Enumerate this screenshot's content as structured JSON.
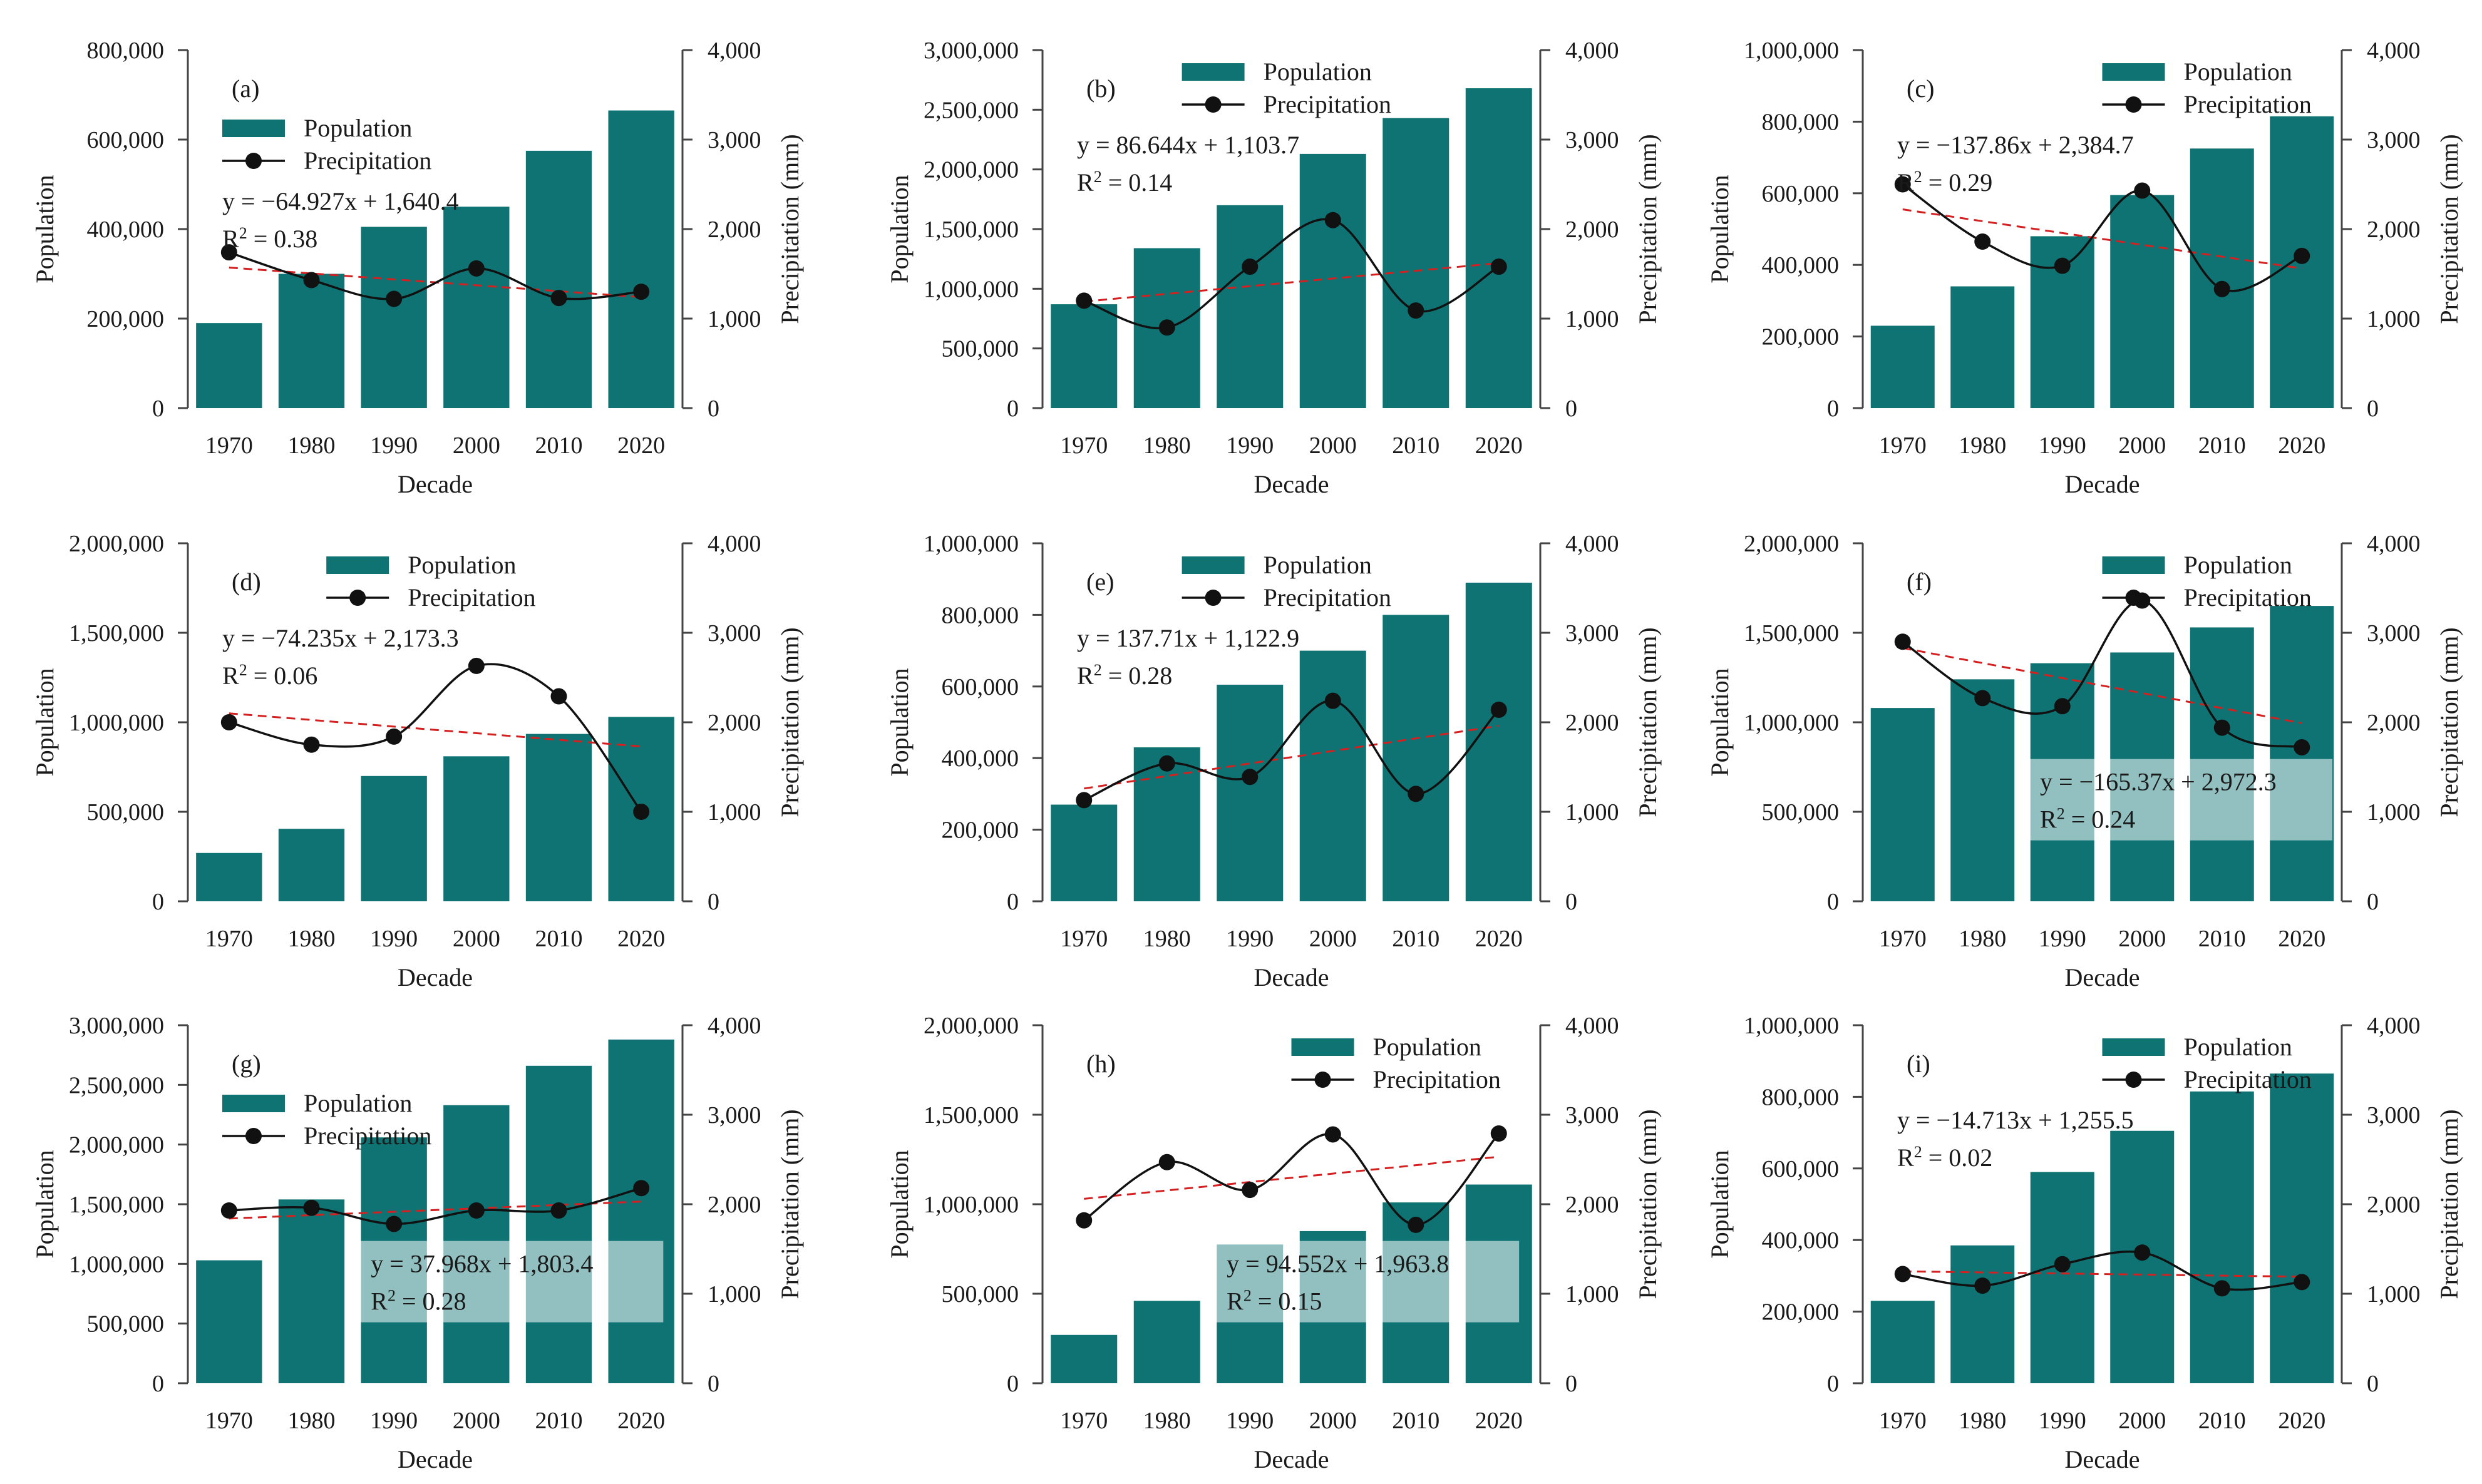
{
  "figure": {
    "colors": {
      "bar": "#0f7373",
      "line": "#111111",
      "trend": "#d42020",
      "eqbox": "#ffffff"
    },
    "legend": {
      "population": "Population",
      "precipitation": "Precipitation"
    }
  },
  "chart_data": [
    {
      "id": "a",
      "type": "bar+line",
      "panel_label": "(a)",
      "categories": [
        "1970",
        "1980",
        "1990",
        "2000",
        "2010",
        "2020"
      ],
      "series": [
        {
          "name": "Population",
          "axis": "left",
          "values": [
            190000,
            300000,
            405000,
            450000,
            575000,
            665000
          ]
        },
        {
          "name": "Precipitation",
          "axis": "right",
          "values": [
            1740,
            1430,
            1220,
            1560,
            1230,
            1300
          ]
        }
      ],
      "trend": {
        "start": 1570,
        "end": 1240
      },
      "y_left": {
        "label": "Population",
        "ticks": [
          "0",
          "200,000",
          "400,000",
          "600,000",
          "800,000"
        ],
        "max": 800000
      },
      "y_right": {
        "label": "Precipitation (mm)",
        "ticks": [
          "0",
          "1,000",
          "2,000",
          "3,000",
          "4,000"
        ],
        "max": 4000
      },
      "xlabel": "Decade",
      "equation": "y = −64.927x + 1,640.4",
      "r2_label": "R",
      "r2_value": " = 0.38",
      "equation_boxed": false,
      "legend_pos": "top-left",
      "eq_pos": "upper-left"
    },
    {
      "id": "b",
      "type": "bar+line",
      "panel_label": "(b)",
      "categories": [
        "1970",
        "1980",
        "1990",
        "2000",
        "2010",
        "2020"
      ],
      "series": [
        {
          "name": "Population",
          "axis": "left",
          "values": [
            870000,
            1340000,
            1700000,
            2130000,
            2430000,
            2680000
          ]
        },
        {
          "name": "Precipitation",
          "axis": "right",
          "values": [
            1200,
            900,
            1580,
            2100,
            1090,
            1580
          ]
        }
      ],
      "trend": {
        "start": 1190,
        "end": 1620
      },
      "y_left": {
        "label": "Population",
        "ticks": [
          "0",
          "500,000",
          "1,000,000",
          "1,500,000",
          "2,000,000",
          "2,500,000",
          "3,000,000"
        ],
        "max": 3000000
      },
      "y_right": {
        "label": "Precipitation (mm)",
        "ticks": [
          "0",
          "1,000",
          "2,000",
          "3,000",
          "4,000"
        ],
        "max": 4000
      },
      "xlabel": "Decade",
      "equation": "y = 86.644x + 1,103.7",
      "r2_label": "R",
      "r2_value": " = 0.14",
      "equation_boxed": false,
      "legend_pos": "top-center",
      "eq_pos": "upper-left"
    },
    {
      "id": "c",
      "type": "bar+line",
      "panel_label": "(c)",
      "categories": [
        "1970",
        "1980",
        "1990",
        "2000",
        "2010",
        "2020"
      ],
      "series": [
        {
          "name": "Population",
          "axis": "left",
          "values": [
            230000,
            340000,
            480000,
            595000,
            725000,
            815000
          ]
        },
        {
          "name": "Precipitation",
          "axis": "right",
          "values": [
            2500,
            1860,
            1590,
            2430,
            1330,
            1700
          ]
        }
      ],
      "trend": {
        "start": 2220,
        "end": 1560
      },
      "y_left": {
        "label": "Population",
        "ticks": [
          "0",
          "200,000",
          "400,000",
          "600,000",
          "800,000",
          "1,000,000"
        ],
        "max": 1000000
      },
      "y_right": {
        "label": "Precipitation (mm)",
        "ticks": [
          "0",
          "1,000",
          "2,000",
          "3,000",
          "4,000"
        ],
        "max": 4000
      },
      "xlabel": "Decade",
      "equation": "y = −137.86x + 2,384.7",
      "r2_label": "R",
      "r2_value": " = 0.29",
      "equation_boxed": false,
      "legend_pos": "top-right",
      "eq_pos": "upper-left"
    },
    {
      "id": "d",
      "type": "bar+line",
      "panel_label": "(d)",
      "categories": [
        "1970",
        "1980",
        "1990",
        "2000",
        "2010",
        "2020"
      ],
      "series": [
        {
          "name": "Population",
          "axis": "left",
          "values": [
            270000,
            405000,
            700000,
            810000,
            935000,
            1030000
          ]
        },
        {
          "name": "Precipitation",
          "axis": "right",
          "values": [
            2000,
            1750,
            1840,
            2630,
            2290,
            1000
          ]
        }
      ],
      "trend": {
        "start": 2100,
        "end": 1730
      },
      "y_left": {
        "label": "Population",
        "ticks": [
          "0",
          "500,000",
          "1,000,000",
          "1,500,000",
          "2,000,000"
        ],
        "max": 2000000
      },
      "y_right": {
        "label": "Precipitation (mm)",
        "ticks": [
          "0",
          "1,000",
          "2,000",
          "3,000",
          "4,000"
        ],
        "max": 4000
      },
      "xlabel": "Decade",
      "equation": "y = −74.235x + 2,173.3",
      "r2_label": "R",
      "r2_value": " = 0.06",
      "equation_boxed": false,
      "legend_pos": "top-center",
      "eq_pos": "upper-left"
    },
    {
      "id": "e",
      "type": "bar+line",
      "panel_label": "(e)",
      "categories": [
        "1970",
        "1980",
        "1990",
        "2000",
        "2010",
        "2020"
      ],
      "series": [
        {
          "name": "Population",
          "axis": "left",
          "values": [
            270000,
            430000,
            605000,
            700000,
            800000,
            890000
          ]
        },
        {
          "name": "Precipitation",
          "axis": "right",
          "values": [
            1130,
            1540,
            1390,
            2240,
            1200,
            2140
          ]
        }
      ],
      "trend": {
        "start": 1260,
        "end": 1960
      },
      "y_left": {
        "label": "Population",
        "ticks": [
          "0",
          "200,000",
          "400,000",
          "600,000",
          "800,000",
          "1,000,000"
        ],
        "max": 1000000
      },
      "y_right": {
        "label": "Precipitation (mm)",
        "ticks": [
          "0",
          "1,000",
          "2,000",
          "3,000",
          "4,000"
        ],
        "max": 4000
      },
      "xlabel": "Decade",
      "equation": "y = 137.71x + 1,122.9",
      "r2_label": "R",
      "r2_value": " = 0.28",
      "equation_boxed": false,
      "legend_pos": "top-center",
      "eq_pos": "upper-left"
    },
    {
      "id": "f",
      "type": "bar+line",
      "panel_label": "(f)",
      "categories": [
        "1970",
        "1980",
        "1990",
        "2000",
        "2010",
        "2020"
      ],
      "series": [
        {
          "name": "Population",
          "axis": "left",
          "values": [
            1080000,
            1240000,
            1330000,
            1390000,
            1530000,
            1650000
          ]
        },
        {
          "name": "Precipitation",
          "axis": "right",
          "values": [
            2900,
            2270,
            2180,
            3360,
            1940,
            1720
          ]
        }
      ],
      "trend": {
        "start": 2830,
        "end": 1990
      },
      "y_left": {
        "label": "Population",
        "ticks": [
          "0",
          "500,000",
          "1,000,000",
          "1,500,000",
          "2,000,000"
        ],
        "max": 2000000
      },
      "y_right": {
        "label": "Precipitation (mm)",
        "ticks": [
          "0",
          "1,000",
          "2,000",
          "3,000",
          "4,000"
        ],
        "max": 4000
      },
      "xlabel": "Decade",
      "equation": "y = −165.37x + 2,972.3",
      "r2_label": "R",
      "r2_value": " = 0.24",
      "equation_boxed": true,
      "legend_pos": "top-right",
      "eq_pos": "lower-right"
    },
    {
      "id": "g",
      "type": "bar+line",
      "panel_label": "(g)",
      "categories": [
        "1970",
        "1980",
        "1990",
        "2000",
        "2010",
        "2020"
      ],
      "series": [
        {
          "name": "Population",
          "axis": "left",
          "values": [
            1030000,
            1540000,
            2060000,
            2330000,
            2660000,
            2880000
          ]
        },
        {
          "name": "Precipitation",
          "axis": "right",
          "values": [
            1930,
            1960,
            1780,
            1930,
            1930,
            2180
          ]
        }
      ],
      "trend": {
        "start": 1840,
        "end": 2030
      },
      "y_left": {
        "label": "Population",
        "ticks": [
          "0",
          "500,000",
          "1,000,000",
          "1,500,000",
          "2,000,000",
          "2,500,000",
          "3,000,000"
        ],
        "max": 3000000
      },
      "y_right": {
        "label": "Precipitation (mm)",
        "ticks": [
          "0",
          "1,000",
          "2,000",
          "3,000",
          "4,000"
        ],
        "max": 4000
      },
      "xlabel": "Decade",
      "equation": "y = 37.968x + 1,803.4",
      "r2_label": "R",
      "r2_value": " = 0.28",
      "equation_boxed": true,
      "legend_pos": "top-left",
      "eq_pos": "lower-right"
    },
    {
      "id": "h",
      "type": "bar+line",
      "panel_label": "(h)",
      "categories": [
        "1970",
        "1980",
        "1990",
        "2000",
        "2010",
        "2020"
      ],
      "series": [
        {
          "name": "Population",
          "axis": "left",
          "values": [
            270000,
            460000,
            775000,
            850000,
            1010000,
            1110000
          ]
        },
        {
          "name": "Precipitation",
          "axis": "right",
          "values": [
            1820,
            2470,
            2160,
            2780,
            1770,
            2790
          ]
        }
      ],
      "trend": {
        "start": 2060,
        "end": 2530
      },
      "y_left": {
        "label": "Population",
        "ticks": [
          "0",
          "500,000",
          "1,000,000",
          "1,500,000",
          "2,000,000"
        ],
        "max": 2000000
      },
      "y_right": {
        "label": "Precipitation (mm)",
        "ticks": [
          "0",
          "1,000",
          "2,000",
          "3,000",
          "4,000"
        ],
        "max": 4000
      },
      "xlabel": "Decade",
      "equation": "y = 94.552x + 1,963.8",
      "r2_label": "R",
      "r2_value": " = 0.15",
      "equation_boxed": true,
      "legend_pos": "top-right",
      "eq_pos": "lower-right"
    },
    {
      "id": "i",
      "type": "bar+line",
      "panel_label": "(i)",
      "categories": [
        "1970",
        "1980",
        "1990",
        "2000",
        "2010",
        "2020"
      ],
      "series": [
        {
          "name": "Population",
          "axis": "left",
          "values": [
            230000,
            385000,
            590000,
            705000,
            815000,
            865000
          ]
        },
        {
          "name": "Precipitation",
          "axis": "right",
          "values": [
            1220,
            1090,
            1330,
            1460,
            1060,
            1130
          ]
        }
      ],
      "trend": {
        "start": 1250,
        "end": 1190
      },
      "y_left": {
        "label": "Population",
        "ticks": [
          "0",
          "200,000",
          "400,000",
          "600,000",
          "800,000",
          "1,000,000"
        ],
        "max": 1000000
      },
      "y_right": {
        "label": "Precipitation (mm)",
        "ticks": [
          "0",
          "1,000",
          "2,000",
          "3,000",
          "4,000"
        ],
        "max": 4000
      },
      "xlabel": "Decade",
      "equation": "y = −14.713x + 1,255.5",
      "r2_label": "R",
      "r2_value": " = 0.02",
      "equation_boxed": false,
      "legend_pos": "top-right",
      "eq_pos": "upper-left"
    }
  ]
}
